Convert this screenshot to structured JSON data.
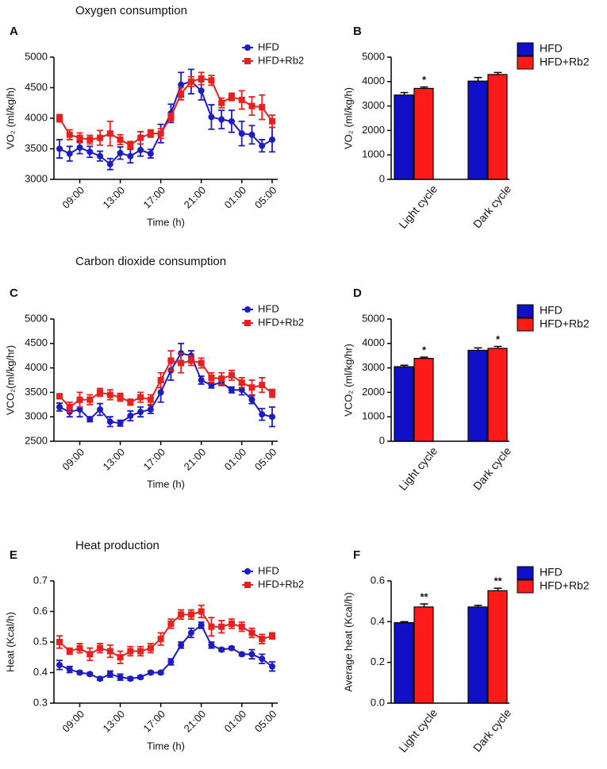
{
  "chart_data": [
    {
      "type": "line",
      "panel": "A",
      "title": "Oxygen consumption",
      "ylabel": "VO₂ (ml/kg/h)",
      "xlabel": "Time (h)",
      "categories": [
        null,
        null,
        "09:00",
        null,
        null,
        null,
        "13:00",
        null,
        null,
        null,
        "17:00",
        null,
        null,
        null,
        "21:00",
        null,
        null,
        null,
        "01:00",
        null,
        null,
        "05:00"
      ],
      "ylim": [
        3000,
        5000
      ],
      "yticks": [
        3000,
        3500,
        4000,
        4500,
        5000
      ],
      "legend": "upper right",
      "series": [
        {
          "name": "HFD",
          "color": "#1c1cc0",
          "marker": "circle",
          "values": [
            3500,
            3420,
            3520,
            3450,
            3380,
            3250,
            3430,
            3380,
            3480,
            3420,
            3750,
            4080,
            4550,
            4600,
            4450,
            4020,
            3980,
            3950,
            3750,
            3730,
            3550,
            3650
          ],
          "errors": [
            150,
            120,
            100,
            90,
            80,
            90,
            100,
            110,
            100,
            70,
            150,
            150,
            200,
            200,
            150,
            200,
            150,
            180,
            200,
            150,
            100,
            200
          ]
        },
        {
          "name": "HFD+Rb2",
          "color": "#e8201f",
          "marker": "square",
          "values": [
            4000,
            3730,
            3680,
            3650,
            3680,
            3750,
            3650,
            3560,
            3680,
            3750,
            3750,
            4020,
            4400,
            4600,
            4650,
            4620,
            4250,
            4350,
            4300,
            4200,
            4180,
            3950
          ],
          "errors": [
            60,
            80,
            80,
            70,
            120,
            200,
            80,
            60,
            100,
            60,
            80,
            60,
            100,
            80,
            100,
            80,
            80,
            60,
            150,
            150,
            200,
            100
          ]
        }
      ]
    },
    {
      "type": "bar",
      "panel": "B",
      "ylabel": "VO₂ (ml/kg/h)",
      "categories": [
        "Light cycle",
        "Dark cycle"
      ],
      "ylim": [
        0,
        5000
      ],
      "yticks": [
        0,
        1000,
        2000,
        3000,
        4000,
        5000
      ],
      "legend": "upper right",
      "series": [
        {
          "name": "HFD",
          "color": "#1010c8",
          "values": [
            3450,
            4020
          ],
          "errors": [
            100,
            150
          ]
        },
        {
          "name": "HFD+Rb2",
          "color": "#ff1a1a",
          "values": [
            3720,
            4290
          ],
          "errors": [
            60,
            80
          ],
          "significance": [
            "*",
            null
          ]
        }
      ]
    },
    {
      "type": "line",
      "panel": "C",
      "title": "Carbon dioxide consumption",
      "ylabel": "VCO₂(ml/kg/hr)",
      "xlabel": "Time (h)",
      "categories": [
        null,
        null,
        "09:00",
        null,
        null,
        null,
        "13:00",
        null,
        null,
        null,
        "17:00",
        null,
        null,
        null,
        "21:00",
        null,
        null,
        null,
        "01:00",
        null,
        null,
        "05:00"
      ],
      "ylim": [
        2500,
        5000
      ],
      "yticks": [
        2500,
        3000,
        3500,
        4000,
        4500,
        5000
      ],
      "legend": "upper right",
      "series": [
        {
          "name": "HFD",
          "color": "#1c1cc0",
          "marker": "circle",
          "values": [
            3200,
            3100,
            3150,
            2950,
            3150,
            2900,
            2870,
            3020,
            3100,
            3150,
            3500,
            3950,
            4300,
            4250,
            3750,
            3650,
            3700,
            3550,
            3550,
            3350,
            3050,
            3000
          ],
          "errors": [
            80,
            100,
            150,
            50,
            120,
            100,
            60,
            100,
            100,
            80,
            200,
            200,
            200,
            100,
            80,
            60,
            60,
            60,
            100,
            80,
            120,
            200
          ]
        },
        {
          "name": "HFD+Rb2",
          "color": "#e8201f",
          "marker": "square",
          "values": [
            3420,
            3200,
            3350,
            3350,
            3500,
            3450,
            3400,
            3300,
            3400,
            3350,
            3750,
            4150,
            4100,
            4150,
            4100,
            3800,
            3780,
            3850,
            3700,
            3600,
            3650,
            3480
          ],
          "errors": [
            50,
            100,
            150,
            100,
            80,
            100,
            80,
            60,
            100,
            100,
            150,
            200,
            200,
            100,
            100,
            100,
            120,
            100,
            100,
            150,
            150,
            80
          ]
        }
      ]
    },
    {
      "type": "bar",
      "panel": "D",
      "ylabel": "VCO₂ (ml/kg/hr)",
      "categories": [
        "Light cycle",
        "Dark cycle"
      ],
      "ylim": [
        0,
        5000
      ],
      "yticks": [
        0,
        1000,
        2000,
        3000,
        4000,
        5000
      ],
      "legend": "upper right",
      "series": [
        {
          "name": "HFD",
          "color": "#1010c8",
          "values": [
            3050,
            3720
          ],
          "errors": [
            60,
            100
          ]
        },
        {
          "name": "HFD+Rb2",
          "color": "#ff1a1a",
          "values": [
            3390,
            3800
          ],
          "errors": [
            50,
            80
          ],
          "significance": [
            "*",
            "*"
          ]
        }
      ]
    },
    {
      "type": "line",
      "panel": "E",
      "title": "Heat production",
      "ylabel": "Heat (Kcal/h)",
      "xlabel": "Time (h)",
      "categories": [
        null,
        null,
        "09:00",
        null,
        null,
        null,
        "13:00",
        null,
        null,
        null,
        "17:00",
        null,
        null,
        null,
        "21:00",
        null,
        null,
        null,
        "01:00",
        null,
        null,
        "05:00"
      ],
      "ylim": [
        0.3,
        0.7
      ],
      "yticks": [
        0.3,
        0.4,
        0.5,
        0.6,
        0.7
      ],
      "legend": "upper right",
      "series": [
        {
          "name": "HFD",
          "color": "#1c1cc0",
          "marker": "circle",
          "values": [
            0.425,
            0.41,
            0.4,
            0.395,
            0.38,
            0.395,
            0.385,
            0.38,
            0.385,
            0.4,
            0.4,
            0.435,
            0.49,
            0.53,
            0.555,
            0.49,
            0.475,
            0.48,
            0.46,
            0.46,
            0.445,
            0.42
          ],
          "errors": [
            0.015,
            0.01,
            0.005,
            0.005,
            0.005,
            0.01,
            0.01,
            0.005,
            0.005,
            0.005,
            0.005,
            0.01,
            0.01,
            0.015,
            0.01,
            0.01,
            0.005,
            0.005,
            0.005,
            0.015,
            0.015,
            0.015
          ]
        },
        {
          "name": "HFD+Rb2",
          "color": "#e8201f",
          "marker": "square",
          "values": [
            0.5,
            0.47,
            0.48,
            0.46,
            0.48,
            0.47,
            0.45,
            0.47,
            0.47,
            0.48,
            0.51,
            0.56,
            0.59,
            0.59,
            0.6,
            0.55,
            0.55,
            0.56,
            0.55,
            0.53,
            0.51,
            0.52
          ],
          "errors": [
            0.02,
            0.01,
            0.015,
            0.02,
            0.015,
            0.02,
            0.02,
            0.015,
            0.015,
            0.015,
            0.02,
            0.015,
            0.015,
            0.015,
            0.02,
            0.03,
            0.02,
            0.015,
            0.015,
            0.015,
            0.015,
            0.01
          ]
        }
      ]
    },
    {
      "type": "bar",
      "panel": "F",
      "ylabel": "Average heat (Kcal/h)",
      "categories": [
        "Light cycle",
        "Dark cycle"
      ],
      "ylim": [
        0,
        0.6
      ],
      "yticks": [
        {
          "value": 0,
          "label": "0.0"
        },
        0.2,
        0.4,
        0.6
      ],
      "legend": "upper right",
      "series": [
        {
          "name": "HFD",
          "color": "#1010c8",
          "values": [
            0.395,
            0.472
          ],
          "errors": [
            0.005,
            0.008
          ]
        },
        {
          "name": "HFD+Rb2",
          "color": "#ff1a1a",
          "values": [
            0.472,
            0.552
          ],
          "errors": [
            0.015,
            0.012
          ],
          "significance": [
            "**",
            "**"
          ]
        }
      ]
    }
  ]
}
